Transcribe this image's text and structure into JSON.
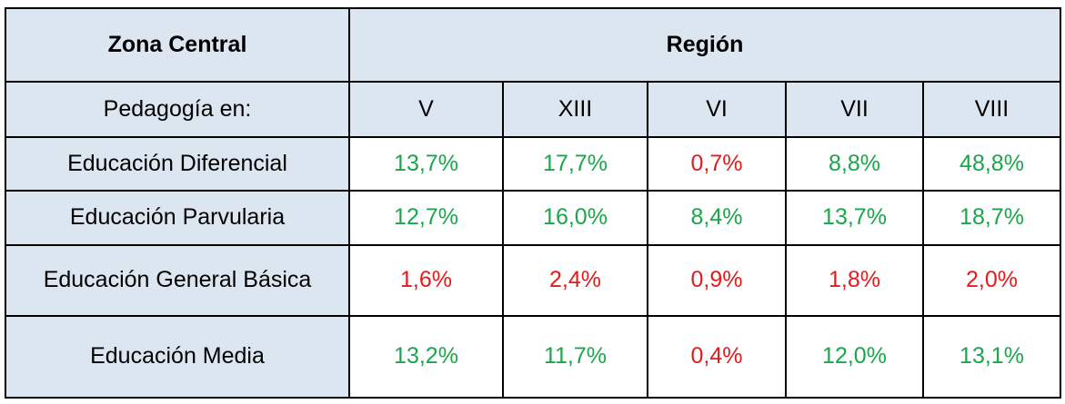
{
  "chart_data": {
    "type": "table",
    "corner_header": "Zona Central",
    "group_header": "Región",
    "row_header_label": "Pedagogía en:",
    "columns": [
      "V",
      "XIII",
      "VI",
      "VII",
      "VIII"
    ],
    "rows": [
      {
        "label": "Educación Diferencial",
        "cells": [
          {
            "text": "13,7%",
            "value": 13.7,
            "status": "green"
          },
          {
            "text": "17,7%",
            "value": 17.7,
            "status": "green"
          },
          {
            "text": "0,7%",
            "value": 0.7,
            "status": "red"
          },
          {
            "text": "8,8%",
            "value": 8.8,
            "status": "green"
          },
          {
            "text": "48,8%",
            "value": 48.8,
            "status": "green"
          }
        ]
      },
      {
        "label": "Educación Parvularia",
        "cells": [
          {
            "text": "12,7%",
            "value": 12.7,
            "status": "green"
          },
          {
            "text": "16,0%",
            "value": 16.0,
            "status": "green"
          },
          {
            "text": "8,4%",
            "value": 8.4,
            "status": "green"
          },
          {
            "text": "13,7%",
            "value": 13.7,
            "status": "green"
          },
          {
            "text": "18,7%",
            "value": 18.7,
            "status": "green"
          }
        ]
      },
      {
        "label": "Educación General Básica",
        "cells": [
          {
            "text": "1,6%",
            "value": 1.6,
            "status": "red"
          },
          {
            "text": "2,4%",
            "value": 2.4,
            "status": "red"
          },
          {
            "text": "0,9%",
            "value": 0.9,
            "status": "red"
          },
          {
            "text": "1,8%",
            "value": 1.8,
            "status": "red"
          },
          {
            "text": "2,0%",
            "value": 2.0,
            "status": "red"
          }
        ]
      },
      {
        "label": "Educación Media",
        "cells": [
          {
            "text": "13,2%",
            "value": 13.2,
            "status": "green"
          },
          {
            "text": "11,7%",
            "value": 11.7,
            "status": "green"
          },
          {
            "text": "0,4%",
            "value": 0.4,
            "status": "red"
          },
          {
            "text": "12,0%",
            "value": 12.0,
            "status": "green"
          },
          {
            "text": "13,1%",
            "value": 13.1,
            "status": "green"
          }
        ]
      }
    ]
  },
  "colors": {
    "header_fill": "#dce6f1",
    "green": "#1aa64a",
    "red": "#e8191b",
    "border": "#000000"
  }
}
